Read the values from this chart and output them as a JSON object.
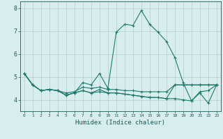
{
  "xlabel": "Humidex (Indice chaleur)",
  "x_values": [
    0,
    1,
    2,
    3,
    4,
    5,
    6,
    7,
    8,
    9,
    10,
    11,
    12,
    13,
    14,
    15,
    16,
    17,
    18,
    19,
    20,
    21,
    22,
    23
  ],
  "lines": [
    [
      5.15,
      4.65,
      4.4,
      4.45,
      4.4,
      4.2,
      4.3,
      4.75,
      4.65,
      5.15,
      4.5,
      6.95,
      7.3,
      7.25,
      7.9,
      7.3,
      6.95,
      6.55,
      5.85,
      4.75,
      3.95,
      4.3,
      3.85,
      4.65
    ],
    [
      5.15,
      4.65,
      4.4,
      4.45,
      4.4,
      4.2,
      4.3,
      4.4,
      4.3,
      4.45,
      4.3,
      4.3,
      4.25,
      4.2,
      4.15,
      4.1,
      4.1,
      4.05,
      4.05,
      4.0,
      3.95,
      4.35,
      4.4,
      4.65
    ],
    [
      5.15,
      4.65,
      4.4,
      4.45,
      4.4,
      4.2,
      4.3,
      4.4,
      4.3,
      4.35,
      4.3,
      4.3,
      4.25,
      4.2,
      4.15,
      4.1,
      4.1,
      4.05,
      4.65,
      4.65,
      4.65,
      4.65,
      4.65,
      4.65
    ],
    [
      5.15,
      4.65,
      4.4,
      4.45,
      4.4,
      4.3,
      4.35,
      4.55,
      4.5,
      4.55,
      4.45,
      4.45,
      4.4,
      4.4,
      4.35,
      4.35,
      4.35,
      4.35,
      4.65,
      4.65,
      4.65,
      4.65,
      4.65,
      4.65
    ]
  ],
  "line_color": "#1a7a6e",
  "bg_color": "#d8eeee",
  "grid_color": "#aecece",
  "axis_color": "#1a5a5a",
  "ylim": [
    3.5,
    8.3
  ],
  "yticks": [
    4,
    5,
    6,
    7,
    8
  ],
  "marker": "+",
  "markersize": 3.5,
  "markeredgewidth": 0.8,
  "linewidth": 0.8
}
